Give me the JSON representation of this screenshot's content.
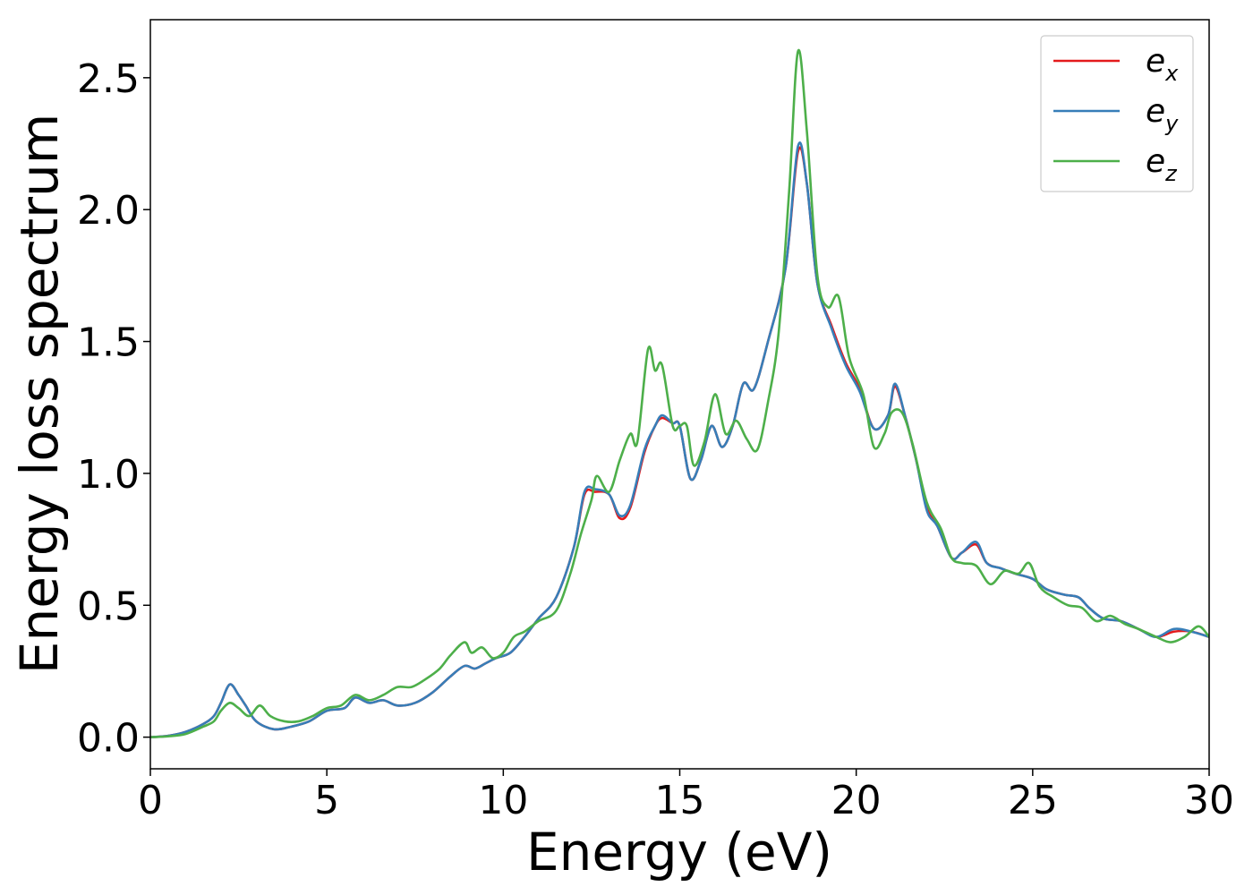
{
  "chart_data": {
    "type": "line",
    "title": "",
    "xlabel": "Energy (eV)",
    "ylabel": "Energy loss spectrum",
    "xlim": [
      0,
      30
    ],
    "ylim": [
      -0.12,
      2.72
    ],
    "xticks": [
      0,
      5,
      10,
      15,
      20,
      25,
      30
    ],
    "xtick_labels": [
      "0",
      "5",
      "10",
      "15",
      "20",
      "25",
      "30"
    ],
    "yticks": [
      0.0,
      0.5,
      1.0,
      1.5,
      2.0,
      2.5
    ],
    "ytick_labels": [
      "0.0",
      "0.5",
      "1.0",
      "1.5",
      "2.0",
      "2.5"
    ],
    "grid": false,
    "legend_position": "top-right",
    "series": [
      {
        "name": "e_x",
        "label_base": "e",
        "label_sub": "x",
        "color": "#e41a1c",
        "points": [
          [
            0,
            0
          ],
          [
            0.5,
            0.005
          ],
          [
            1,
            0.02
          ],
          [
            1.5,
            0.05
          ],
          [
            1.8,
            0.08
          ],
          [
            2.0,
            0.13
          ],
          [
            2.25,
            0.2
          ],
          [
            2.5,
            0.16
          ],
          [
            2.7,
            0.12
          ],
          [
            3.0,
            0.06
          ],
          [
            3.5,
            0.03
          ],
          [
            4.0,
            0.04
          ],
          [
            4.5,
            0.06
          ],
          [
            5,
            0.1
          ],
          [
            5.5,
            0.11
          ],
          [
            5.8,
            0.15
          ],
          [
            6.2,
            0.13
          ],
          [
            6.6,
            0.14
          ],
          [
            7,
            0.12
          ],
          [
            7.5,
            0.13
          ],
          [
            8,
            0.17
          ],
          [
            8.5,
            0.23
          ],
          [
            8.9,
            0.27
          ],
          [
            9.2,
            0.26
          ],
          [
            9.5,
            0.28
          ],
          [
            9.8,
            0.3
          ],
          [
            10.2,
            0.32
          ],
          [
            10.6,
            0.38
          ],
          [
            11,
            0.45
          ],
          [
            11.5,
            0.53
          ],
          [
            12,
            0.72
          ],
          [
            12.3,
            0.92
          ],
          [
            12.6,
            0.93
          ],
          [
            13.0,
            0.92
          ],
          [
            13.3,
            0.83
          ],
          [
            13.6,
            0.87
          ],
          [
            14.0,
            1.08
          ],
          [
            14.3,
            1.18
          ],
          [
            14.5,
            1.21
          ],
          [
            14.8,
            1.19
          ],
          [
            15.0,
            1.18
          ],
          [
            15.3,
            0.98
          ],
          [
            15.6,
            1.05
          ],
          [
            15.9,
            1.18
          ],
          [
            16.2,
            1.1
          ],
          [
            16.5,
            1.18
          ],
          [
            16.8,
            1.34
          ],
          [
            17.1,
            1.32
          ],
          [
            17.5,
            1.5
          ],
          [
            18.0,
            1.78
          ],
          [
            18.35,
            2.22
          ],
          [
            18.6,
            2.1
          ],
          [
            18.9,
            1.72
          ],
          [
            19.3,
            1.56
          ],
          [
            19.7,
            1.42
          ],
          [
            20.1,
            1.32
          ],
          [
            20.5,
            1.17
          ],
          [
            20.9,
            1.22
          ],
          [
            21.1,
            1.33
          ],
          [
            21.4,
            1.21
          ],
          [
            21.7,
            1.05
          ],
          [
            22.0,
            0.87
          ],
          [
            22.3,
            0.8
          ],
          [
            22.7,
            0.68
          ],
          [
            23.0,
            0.7
          ],
          [
            23.4,
            0.73
          ],
          [
            23.7,
            0.66
          ],
          [
            24.1,
            0.64
          ],
          [
            24.5,
            0.62
          ],
          [
            25.0,
            0.6
          ],
          [
            25.4,
            0.56
          ],
          [
            25.9,
            0.54
          ],
          [
            26.3,
            0.53
          ],
          [
            26.6,
            0.49
          ],
          [
            27.0,
            0.45
          ],
          [
            27.5,
            0.44
          ],
          [
            28.0,
            0.41
          ],
          [
            28.5,
            0.38
          ],
          [
            29.0,
            0.4
          ],
          [
            29.5,
            0.4
          ],
          [
            30,
            0.38
          ]
        ]
      },
      {
        "name": "e_y",
        "label_base": "e",
        "label_sub": "y",
        "color": "#377eb8",
        "points": [
          [
            0,
            0
          ],
          [
            0.5,
            0.005
          ],
          [
            1,
            0.02
          ],
          [
            1.5,
            0.05
          ],
          [
            1.8,
            0.08
          ],
          [
            2.0,
            0.13
          ],
          [
            2.25,
            0.2
          ],
          [
            2.5,
            0.16
          ],
          [
            2.7,
            0.12
          ],
          [
            3.0,
            0.06
          ],
          [
            3.5,
            0.03
          ],
          [
            4.0,
            0.04
          ],
          [
            4.5,
            0.06
          ],
          [
            5,
            0.1
          ],
          [
            5.5,
            0.11
          ],
          [
            5.8,
            0.15
          ],
          [
            6.2,
            0.13
          ],
          [
            6.6,
            0.14
          ],
          [
            7,
            0.12
          ],
          [
            7.5,
            0.13
          ],
          [
            8,
            0.17
          ],
          [
            8.5,
            0.23
          ],
          [
            8.9,
            0.27
          ],
          [
            9.2,
            0.26
          ],
          [
            9.5,
            0.28
          ],
          [
            9.8,
            0.3
          ],
          [
            10.2,
            0.32
          ],
          [
            10.6,
            0.38
          ],
          [
            11,
            0.45
          ],
          [
            11.5,
            0.53
          ],
          [
            12,
            0.72
          ],
          [
            12.3,
            0.93
          ],
          [
            12.6,
            0.94
          ],
          [
            13.0,
            0.92
          ],
          [
            13.3,
            0.84
          ],
          [
            13.6,
            0.88
          ],
          [
            14.0,
            1.09
          ],
          [
            14.3,
            1.18
          ],
          [
            14.5,
            1.22
          ],
          [
            14.8,
            1.19
          ],
          [
            15.0,
            1.18
          ],
          [
            15.3,
            0.98
          ],
          [
            15.6,
            1.05
          ],
          [
            15.9,
            1.18
          ],
          [
            16.2,
            1.1
          ],
          [
            16.5,
            1.18
          ],
          [
            16.8,
            1.34
          ],
          [
            17.1,
            1.32
          ],
          [
            17.5,
            1.5
          ],
          [
            18.0,
            1.78
          ],
          [
            18.35,
            2.24
          ],
          [
            18.6,
            2.1
          ],
          [
            18.9,
            1.72
          ],
          [
            19.3,
            1.55
          ],
          [
            19.7,
            1.41
          ],
          [
            20.1,
            1.31
          ],
          [
            20.5,
            1.17
          ],
          [
            20.9,
            1.22
          ],
          [
            21.1,
            1.34
          ],
          [
            21.4,
            1.21
          ],
          [
            21.7,
            1.05
          ],
          [
            22.0,
            0.86
          ],
          [
            22.3,
            0.8
          ],
          [
            22.7,
            0.68
          ],
          [
            23.0,
            0.7
          ],
          [
            23.4,
            0.74
          ],
          [
            23.7,
            0.66
          ],
          [
            24.1,
            0.64
          ],
          [
            24.5,
            0.62
          ],
          [
            25.0,
            0.6
          ],
          [
            25.4,
            0.56
          ],
          [
            25.9,
            0.54
          ],
          [
            26.3,
            0.53
          ],
          [
            26.6,
            0.49
          ],
          [
            27.0,
            0.45
          ],
          [
            27.5,
            0.44
          ],
          [
            28.0,
            0.41
          ],
          [
            28.5,
            0.38
          ],
          [
            29.0,
            0.41
          ],
          [
            29.5,
            0.4
          ],
          [
            30,
            0.38
          ]
        ]
      },
      {
        "name": "e_z",
        "label_base": "e",
        "label_sub": "z",
        "color": "#4daf4a",
        "points": [
          [
            0,
            0
          ],
          [
            0.5,
            0.003
          ],
          [
            1,
            0.012
          ],
          [
            1.5,
            0.04
          ],
          [
            1.8,
            0.06
          ],
          [
            2.0,
            0.1
          ],
          [
            2.25,
            0.13
          ],
          [
            2.5,
            0.11
          ],
          [
            2.8,
            0.08
          ],
          [
            3.1,
            0.12
          ],
          [
            3.4,
            0.08
          ],
          [
            3.8,
            0.06
          ],
          [
            4.2,
            0.06
          ],
          [
            4.6,
            0.08
          ],
          [
            5,
            0.11
          ],
          [
            5.4,
            0.12
          ],
          [
            5.8,
            0.16
          ],
          [
            6.2,
            0.14
          ],
          [
            6.6,
            0.16
          ],
          [
            7,
            0.19
          ],
          [
            7.4,
            0.19
          ],
          [
            7.8,
            0.22
          ],
          [
            8.2,
            0.26
          ],
          [
            8.5,
            0.31
          ],
          [
            8.9,
            0.36
          ],
          [
            9.1,
            0.32
          ],
          [
            9.4,
            0.34
          ],
          [
            9.7,
            0.3
          ],
          [
            10.0,
            0.32
          ],
          [
            10.3,
            0.38
          ],
          [
            10.6,
            0.4
          ],
          [
            11.0,
            0.44
          ],
          [
            11.5,
            0.48
          ],
          [
            11.9,
            0.62
          ],
          [
            12.2,
            0.77
          ],
          [
            12.5,
            0.9
          ],
          [
            12.65,
            0.99
          ],
          [
            13.0,
            0.93
          ],
          [
            13.3,
            1.05
          ],
          [
            13.6,
            1.15
          ],
          [
            13.8,
            1.12
          ],
          [
            14.1,
            1.47
          ],
          [
            14.3,
            1.39
          ],
          [
            14.5,
            1.41
          ],
          [
            14.8,
            1.18
          ],
          [
            15.0,
            1.18
          ],
          [
            15.2,
            1.18
          ],
          [
            15.4,
            1.03
          ],
          [
            15.7,
            1.12
          ],
          [
            16.0,
            1.3
          ],
          [
            16.3,
            1.15
          ],
          [
            16.6,
            1.2
          ],
          [
            16.9,
            1.13
          ],
          [
            17.2,
            1.09
          ],
          [
            17.5,
            1.27
          ],
          [
            17.8,
            1.53
          ],
          [
            18.1,
            2.07
          ],
          [
            18.35,
            2.6
          ],
          [
            18.6,
            2.3
          ],
          [
            18.9,
            1.75
          ],
          [
            19.2,
            1.63
          ],
          [
            19.5,
            1.67
          ],
          [
            19.8,
            1.44
          ],
          [
            20.2,
            1.3
          ],
          [
            20.5,
            1.1
          ],
          [
            20.8,
            1.15
          ],
          [
            21.0,
            1.23
          ],
          [
            21.3,
            1.23
          ],
          [
            21.6,
            1.11
          ],
          [
            22.0,
            0.89
          ],
          [
            22.4,
            0.79
          ],
          [
            22.7,
            0.68
          ],
          [
            23.0,
            0.66
          ],
          [
            23.4,
            0.65
          ],
          [
            23.8,
            0.58
          ],
          [
            24.2,
            0.63
          ],
          [
            24.6,
            0.62
          ],
          [
            24.9,
            0.66
          ],
          [
            25.2,
            0.57
          ],
          [
            25.6,
            0.53
          ],
          [
            26.0,
            0.5
          ],
          [
            26.4,
            0.49
          ],
          [
            26.8,
            0.44
          ],
          [
            27.2,
            0.46
          ],
          [
            27.6,
            0.43
          ],
          [
            28.0,
            0.41
          ],
          [
            28.5,
            0.38
          ],
          [
            28.9,
            0.36
          ],
          [
            29.3,
            0.38
          ],
          [
            29.7,
            0.42
          ],
          [
            30,
            0.38
          ]
        ]
      }
    ]
  }
}
